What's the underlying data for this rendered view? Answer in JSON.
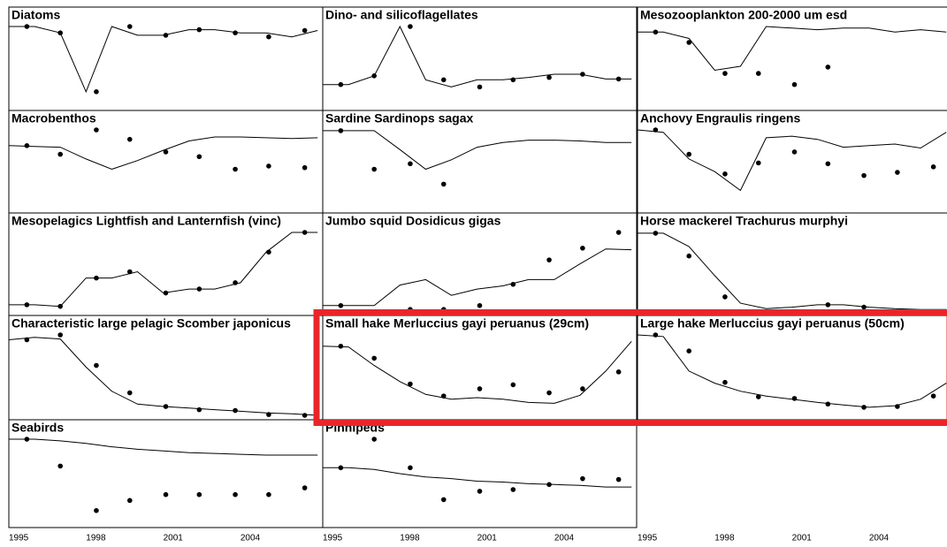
{
  "x_axis": {
    "xlim": [
      1995,
      2007.2
    ],
    "xticks": [
      1995,
      1998,
      2001,
      2004
    ],
    "observed_x": [
      1995.7,
      1997.0,
      1998.4,
      1999.7,
      2001.1,
      2002.4,
      2003.8,
      2005.1,
      2006.5
    ],
    "fitted_x": [
      1995,
      1996,
      1997,
      1998,
      1999,
      2000,
      2001,
      2002,
      2003,
      2004,
      2005,
      2006,
      2007
    ]
  },
  "chart_data": [
    {
      "type": "line",
      "title": "Diatoms",
      "ylim": [
        0,
        1
      ],
      "observed": [
        1.0,
        0.92,
        0.18,
        1.0,
        0.89,
        0.96,
        0.92,
        0.87,
        0.95
      ],
      "fitted": [
        1.0,
        1.0,
        0.92,
        0.18,
        1.0,
        0.89,
        0.89,
        0.96,
        0.96,
        0.92,
        0.92,
        0.87,
        0.95
      ]
    },
    {
      "type": "line",
      "title": "Dino- and silicoflagellates",
      "ylim": [
        0,
        1
      ],
      "observed": [
        0.27,
        0.38,
        1.0,
        0.33,
        0.24,
        0.33,
        0.36,
        0.4,
        0.34
      ],
      "fitted": [
        0.27,
        0.27,
        0.38,
        1.0,
        0.33,
        0.24,
        0.33,
        0.33,
        0.36,
        0.4,
        0.4,
        0.34,
        0.34
      ]
    },
    {
      "type": "line",
      "title": "Mesozooplankton 200-2000 um esd",
      "ylim": [
        0,
        1
      ],
      "observed": [
        0.93,
        0.8,
        0.41,
        0.41,
        0.27,
        0.49,
        null,
        null,
        null
      ],
      "fitted": [
        0.93,
        0.93,
        0.85,
        0.45,
        0.5,
        1.0,
        0.98,
        0.96,
        0.98,
        0.98,
        0.93,
        0.96,
        0.93
      ]
    },
    {
      "type": "line",
      "title": "Macrobenthos",
      "ylim": [
        0,
        1
      ],
      "observed": [
        0.8,
        0.69,
        1.0,
        0.88,
        0.72,
        0.66,
        0.5,
        0.54,
        0.52
      ],
      "fitted": [
        0.8,
        0.79,
        0.78,
        0.63,
        0.5,
        0.61,
        0.74,
        0.86,
        0.91,
        0.91,
        0.9,
        0.89,
        0.9
      ]
    },
    {
      "type": "line",
      "title": "Sardine Sardinops sagax",
      "ylim": [
        0,
        1
      ],
      "observed": [
        0.99,
        0.5,
        0.57,
        0.31,
        null,
        null,
        null,
        null,
        null
      ],
      "fitted": [
        0.99,
        0.99,
        0.99,
        0.75,
        0.5,
        0.62,
        0.78,
        0.84,
        0.87,
        0.87,
        0.86,
        0.84,
        0.84
      ]
    },
    {
      "type": "line",
      "title": "Anchovy Engraulis ringens",
      "ylim": [
        0,
        1
      ],
      "observed": [
        1.0,
        0.69,
        0.44,
        0.58,
        0.72,
        0.57,
        0.42,
        0.46,
        0.53
      ],
      "fitted": [
        1.0,
        0.97,
        0.63,
        0.47,
        0.23,
        0.9,
        0.92,
        0.88,
        0.78,
        0.8,
        0.82,
        0.77,
        0.97
      ]
    },
    {
      "type": "line",
      "title": "Mesopelagics Lightfish and Lanternfish (vinc)",
      "ylim": [
        0,
        1
      ],
      "observed": [
        0.08,
        0.06,
        0.42,
        0.5,
        0.23,
        0.28,
        0.36,
        0.75,
        1.0
      ],
      "fitted": [
        0.08,
        0.08,
        0.06,
        0.42,
        0.42,
        0.5,
        0.23,
        0.28,
        0.28,
        0.36,
        0.75,
        1.0,
        1.0
      ]
    },
    {
      "type": "line",
      "title": "Jumbo squid Dosidicus gigas",
      "ylim": [
        0,
        1
      ],
      "observed": [
        0.07,
        null,
        0.02,
        0.02,
        0.07,
        0.34,
        0.65,
        0.8,
        1.0
      ],
      "fitted": [
        0.07,
        0.07,
        0.07,
        0.33,
        0.4,
        0.2,
        0.28,
        0.32,
        0.4,
        0.4,
        0.6,
        0.79,
        0.78
      ]
    },
    {
      "type": "line",
      "title": "Horse mackerel Trachurus murphyi",
      "ylim": [
        0,
        1
      ],
      "observed": [
        0.99,
        0.7,
        0.18,
        null,
        null,
        0.08,
        0.05,
        null,
        null
      ],
      "fitted": [
        0.99,
        0.99,
        0.82,
        0.45,
        0.1,
        0.03,
        0.05,
        0.08,
        0.08,
        0.05,
        0.03,
        0.02,
        0.02
      ]
    },
    {
      "type": "line",
      "title": "Characteristic large pelagic Scomber japonicus",
      "ylim": [
        0,
        1
      ],
      "observed": [
        0.94,
        1.0,
        0.62,
        0.28,
        0.11,
        0.07,
        0.06,
        0.01,
        0
      ],
      "fitted": [
        0.94,
        0.97,
        0.95,
        0.6,
        0.3,
        0.14,
        0.11,
        0.09,
        0.07,
        0.05,
        0.03,
        0.02,
        0
      ]
    },
    {
      "type": "line",
      "title": "Small hake Merluccius gayi peruanus (29cm)",
      "ylim": [
        0,
        1
      ],
      "observed": [
        0.86,
        0.71,
        0.39,
        0.24,
        0.33,
        0.38,
        0.28,
        0.33,
        0.54
      ],
      "fitted": [
        0.86,
        0.85,
        0.62,
        0.42,
        0.26,
        0.2,
        0.22,
        0.2,
        0.16,
        0.15,
        0.25,
        0.55,
        0.92
      ]
    },
    {
      "type": "line",
      "title": "Large hake Merluccius gayi peruanus (50cm)",
      "ylim": [
        0,
        1
      ],
      "observed": [
        1.0,
        0.8,
        0.41,
        0.23,
        0.21,
        0.14,
        0.1,
        0.11,
        0.24
      ],
      "fitted": [
        1.0,
        0.98,
        0.55,
        0.4,
        0.3,
        0.24,
        0.2,
        0.16,
        0.13,
        0.1,
        0.12,
        0.2,
        0.4
      ]
    },
    {
      "type": "line",
      "title": "Seabirds",
      "ylim": [
        0,
        1
      ],
      "observed": [
        1.0,
        0.68,
        0.15,
        0.27,
        0.34,
        0.34,
        0.34,
        0.34,
        0.42
      ],
      "fitted": [
        1.0,
        1.0,
        0.98,
        0.95,
        0.91,
        0.88,
        0.86,
        0.84,
        0.83,
        0.82,
        0.81,
        0.81,
        0.81
      ]
    },
    {
      "type": "line",
      "title": "Pinnipeds",
      "ylim": [
        0,
        1
      ],
      "observed": [
        0.66,
        1.0,
        0.66,
        0.28,
        0.38,
        0.4,
        0.46,
        0.53,
        0.52
      ],
      "fitted": [
        0.66,
        0.66,
        0.64,
        0.59,
        0.55,
        0.53,
        0.5,
        0.49,
        0.47,
        0.46,
        0.45,
        0.43,
        0.43
      ]
    }
  ]
}
